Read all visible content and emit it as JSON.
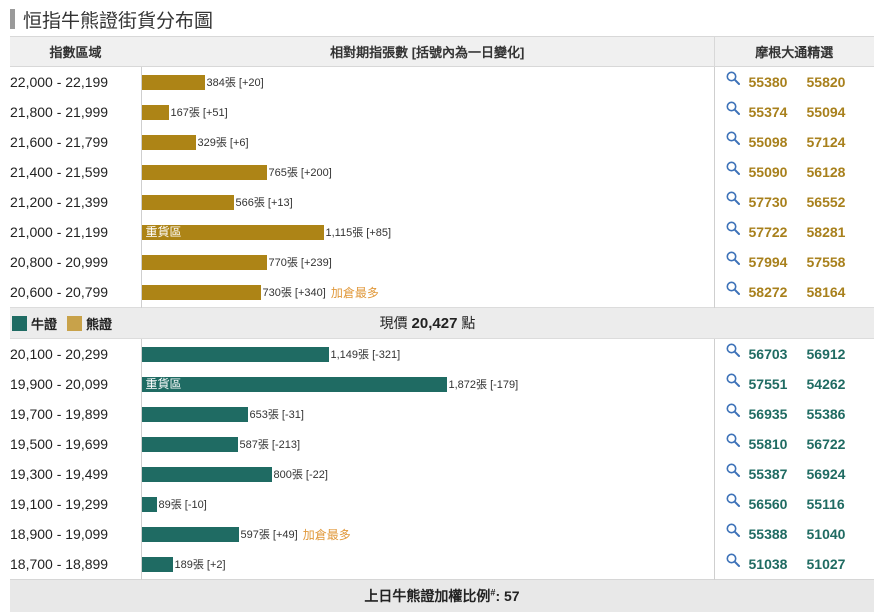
{
  "title": "恒指牛熊證街貨分布圖",
  "headers": {
    "range": "指數區域",
    "count": "相對期指張數 [括號內為一日變化]",
    "links": "摩根大通精選"
  },
  "colors": {
    "bear": "#ad8416",
    "bull": "#1f6b63",
    "note": "#e0983a"
  },
  "legend": {
    "bull": "牛證",
    "bear": "熊證"
  },
  "price": {
    "prefix": "現價",
    "value": "20,427",
    "suffix": "點"
  },
  "footer": {
    "label": "上日牛熊證加權比例",
    "mark": "#",
    "sep": ":",
    "value": "57"
  },
  "chart_data": {
    "type": "bar",
    "orientation": "horizontal",
    "unit": "張",
    "series": [
      {
        "name": "熊證",
        "categories": [
          "22,000 - 22,199",
          "21,800 - 21,999",
          "21,600 - 21,799",
          "21,400 - 21,599",
          "21,200 - 21,399",
          "21,000 - 21,199",
          "20,800 - 20,999",
          "20,600 - 20,799"
        ],
        "values": [
          384,
          167,
          329,
          765,
          566,
          1115,
          770,
          730
        ],
        "labels": [
          "384張 [+20]",
          "167張 [+51]",
          "329張 [+6]",
          "765張 [+200]",
          "566張 [+13]",
          "1,115張 [+85]",
          "770張 [+239]",
          "730張 [+340]"
        ],
        "inner_labels": [
          "",
          "",
          "",
          "",
          "",
          "重貨區",
          "",
          ""
        ],
        "notes": [
          "",
          "",
          "",
          "",
          "",
          "",
          "",
          "加倉最多"
        ],
        "codes": [
          [
            "55380",
            "55820"
          ],
          [
            "55374",
            "55094"
          ],
          [
            "55098",
            "57124"
          ],
          [
            "55090",
            "56128"
          ],
          [
            "57730",
            "56552"
          ],
          [
            "57722",
            "58281"
          ],
          [
            "57994",
            "57558"
          ],
          [
            "58272",
            "58164"
          ]
        ]
      },
      {
        "name": "牛證",
        "categories": [
          "20,100 - 20,299",
          "19,900 - 20,099",
          "19,700 - 19,899",
          "19,500 - 19,699",
          "19,300 - 19,499",
          "19,100 - 19,299",
          "18,900 - 19,099",
          "18,700 - 18,899"
        ],
        "values": [
          1149,
          1872,
          653,
          587,
          800,
          89,
          597,
          189
        ],
        "labels": [
          "1,149張 [-321]",
          "1,872張 [-179]",
          "653張 [-31]",
          "587張 [-213]",
          "800張 [-22]",
          "89張 [-10]",
          "597張 [+49]",
          "189張 [+2]"
        ],
        "inner_labels": [
          "",
          "重貨區",
          "",
          "",
          "",
          "",
          "",
          ""
        ],
        "notes": [
          "",
          "",
          "",
          "",
          "",
          "",
          "加倉最多",
          ""
        ],
        "codes": [
          [
            "56703",
            "56912"
          ],
          [
            "57551",
            "54262"
          ],
          [
            "56935",
            "55386"
          ],
          [
            "55810",
            "56722"
          ],
          [
            "55387",
            "56924"
          ],
          [
            "56560",
            "55116"
          ],
          [
            "55388",
            "51040"
          ],
          [
            "51038",
            "51027"
          ]
        ]
      }
    ]
  }
}
